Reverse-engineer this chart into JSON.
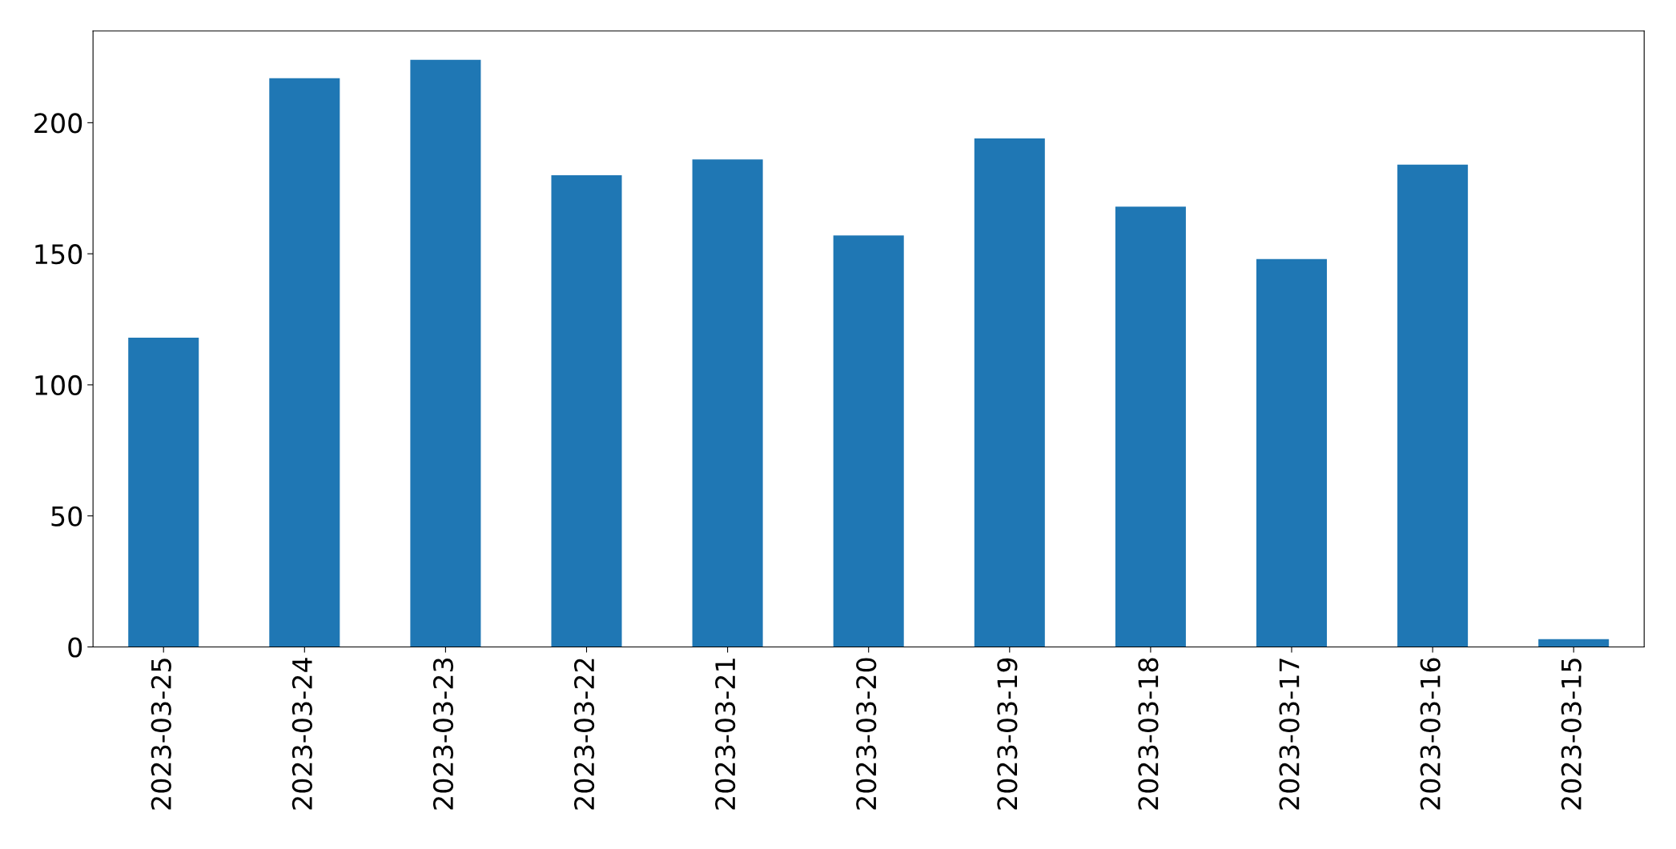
{
  "chart_data": {
    "type": "bar",
    "categories": [
      "2023-03-25",
      "2023-03-24",
      "2023-03-23",
      "2023-03-22",
      "2023-03-21",
      "2023-03-20",
      "2023-03-19",
      "2023-03-18",
      "2023-03-17",
      "2023-03-16",
      "2023-03-15"
    ],
    "values": [
      118,
      217,
      224,
      180,
      186,
      157,
      194,
      168,
      148,
      184,
      3
    ],
    "color": "#1f77b4",
    "ylim": [
      0,
      235
    ],
    "yticks": [
      0,
      50,
      100,
      150,
      200
    ],
    "grid": false
  }
}
